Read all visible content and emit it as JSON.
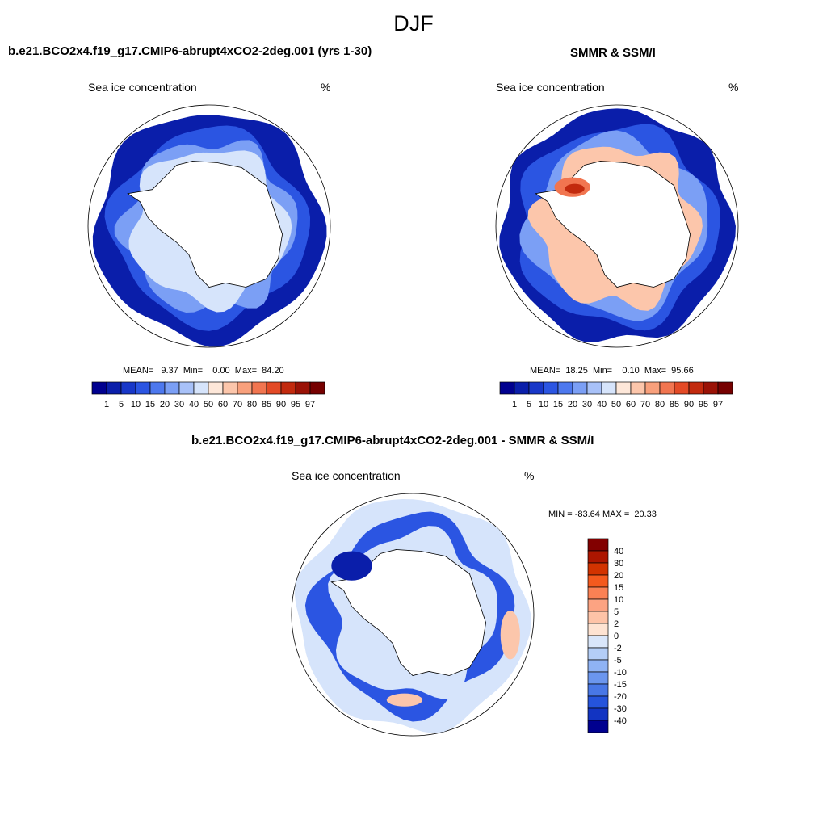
{
  "figure": {
    "title": "DJF"
  },
  "panels": [
    {
      "title": "b.e21.BCO2x4.f19_g17.CMIP6-abrupt4xCO2-2deg.001 (yrs 1-30)",
      "subtitle_left": "Sea ice concentration",
      "subtitle_right": "%",
      "stats": "MEAN=   9.37  Min=    0.00  Max=  84.20"
    },
    {
      "title": "SMMR & SSM/I",
      "subtitle_left": "Sea ice concentration",
      "subtitle_right": "%",
      "stats": "MEAN=  18.25  Min=    0.10  Max=  95.66"
    },
    {
      "title": "b.e21.BCO2x4.f19_g17.CMIP6-abrupt4xCO2-2deg.001 - SMMR & SSM/I",
      "subtitle_left": "Sea ice concentration",
      "subtitle_right": "%",
      "stats": "MIN = -83.64 MAX =  20.33"
    }
  ],
  "colorbar_horizontal": {
    "labels": [
      "1",
      "5",
      "10",
      "15",
      "20",
      "30",
      "40",
      "50",
      "60",
      "70",
      "80",
      "85",
      "90",
      "95",
      "97"
    ],
    "colors": [
      "#00008f",
      "#0a1eaa",
      "#1837c8",
      "#2b55e2",
      "#4d78ee",
      "#7b9ff5",
      "#a8c1f8",
      "#d6e4fb",
      "#fde7d9",
      "#fcc6ab",
      "#f8a07c",
      "#f17550",
      "#e34a26",
      "#c22a0e",
      "#9a1206",
      "#760000"
    ]
  },
  "colorbar_vertical": {
    "labels": [
      "40",
      "30",
      "20",
      "15",
      "10",
      "5",
      "2",
      "0",
      "-2",
      "-5",
      "-10",
      "-15",
      "-20",
      "-30",
      "-40"
    ],
    "colors": [
      "#820000",
      "#ad1600",
      "#d23300",
      "#f45a1e",
      "#fb8154",
      "#fca382",
      "#fec3a7",
      "#fee3d2",
      "#d9e6fa",
      "#b4cef7",
      "#8fb3f4",
      "#6b96ee",
      "#4877e6",
      "#2554dc",
      "#1234c2",
      "#00008f"
    ]
  },
  "map_colors": {
    "ocean_dark": "#0a1eaa",
    "ocean_mid": "#2b55e2",
    "ocean_light": "#7b9ff5",
    "ice_pale": "#d6e4fb",
    "warm_low": "#fcc6ab",
    "warm_mid": "#f17550",
    "warm_high": "#c22a0e"
  }
}
